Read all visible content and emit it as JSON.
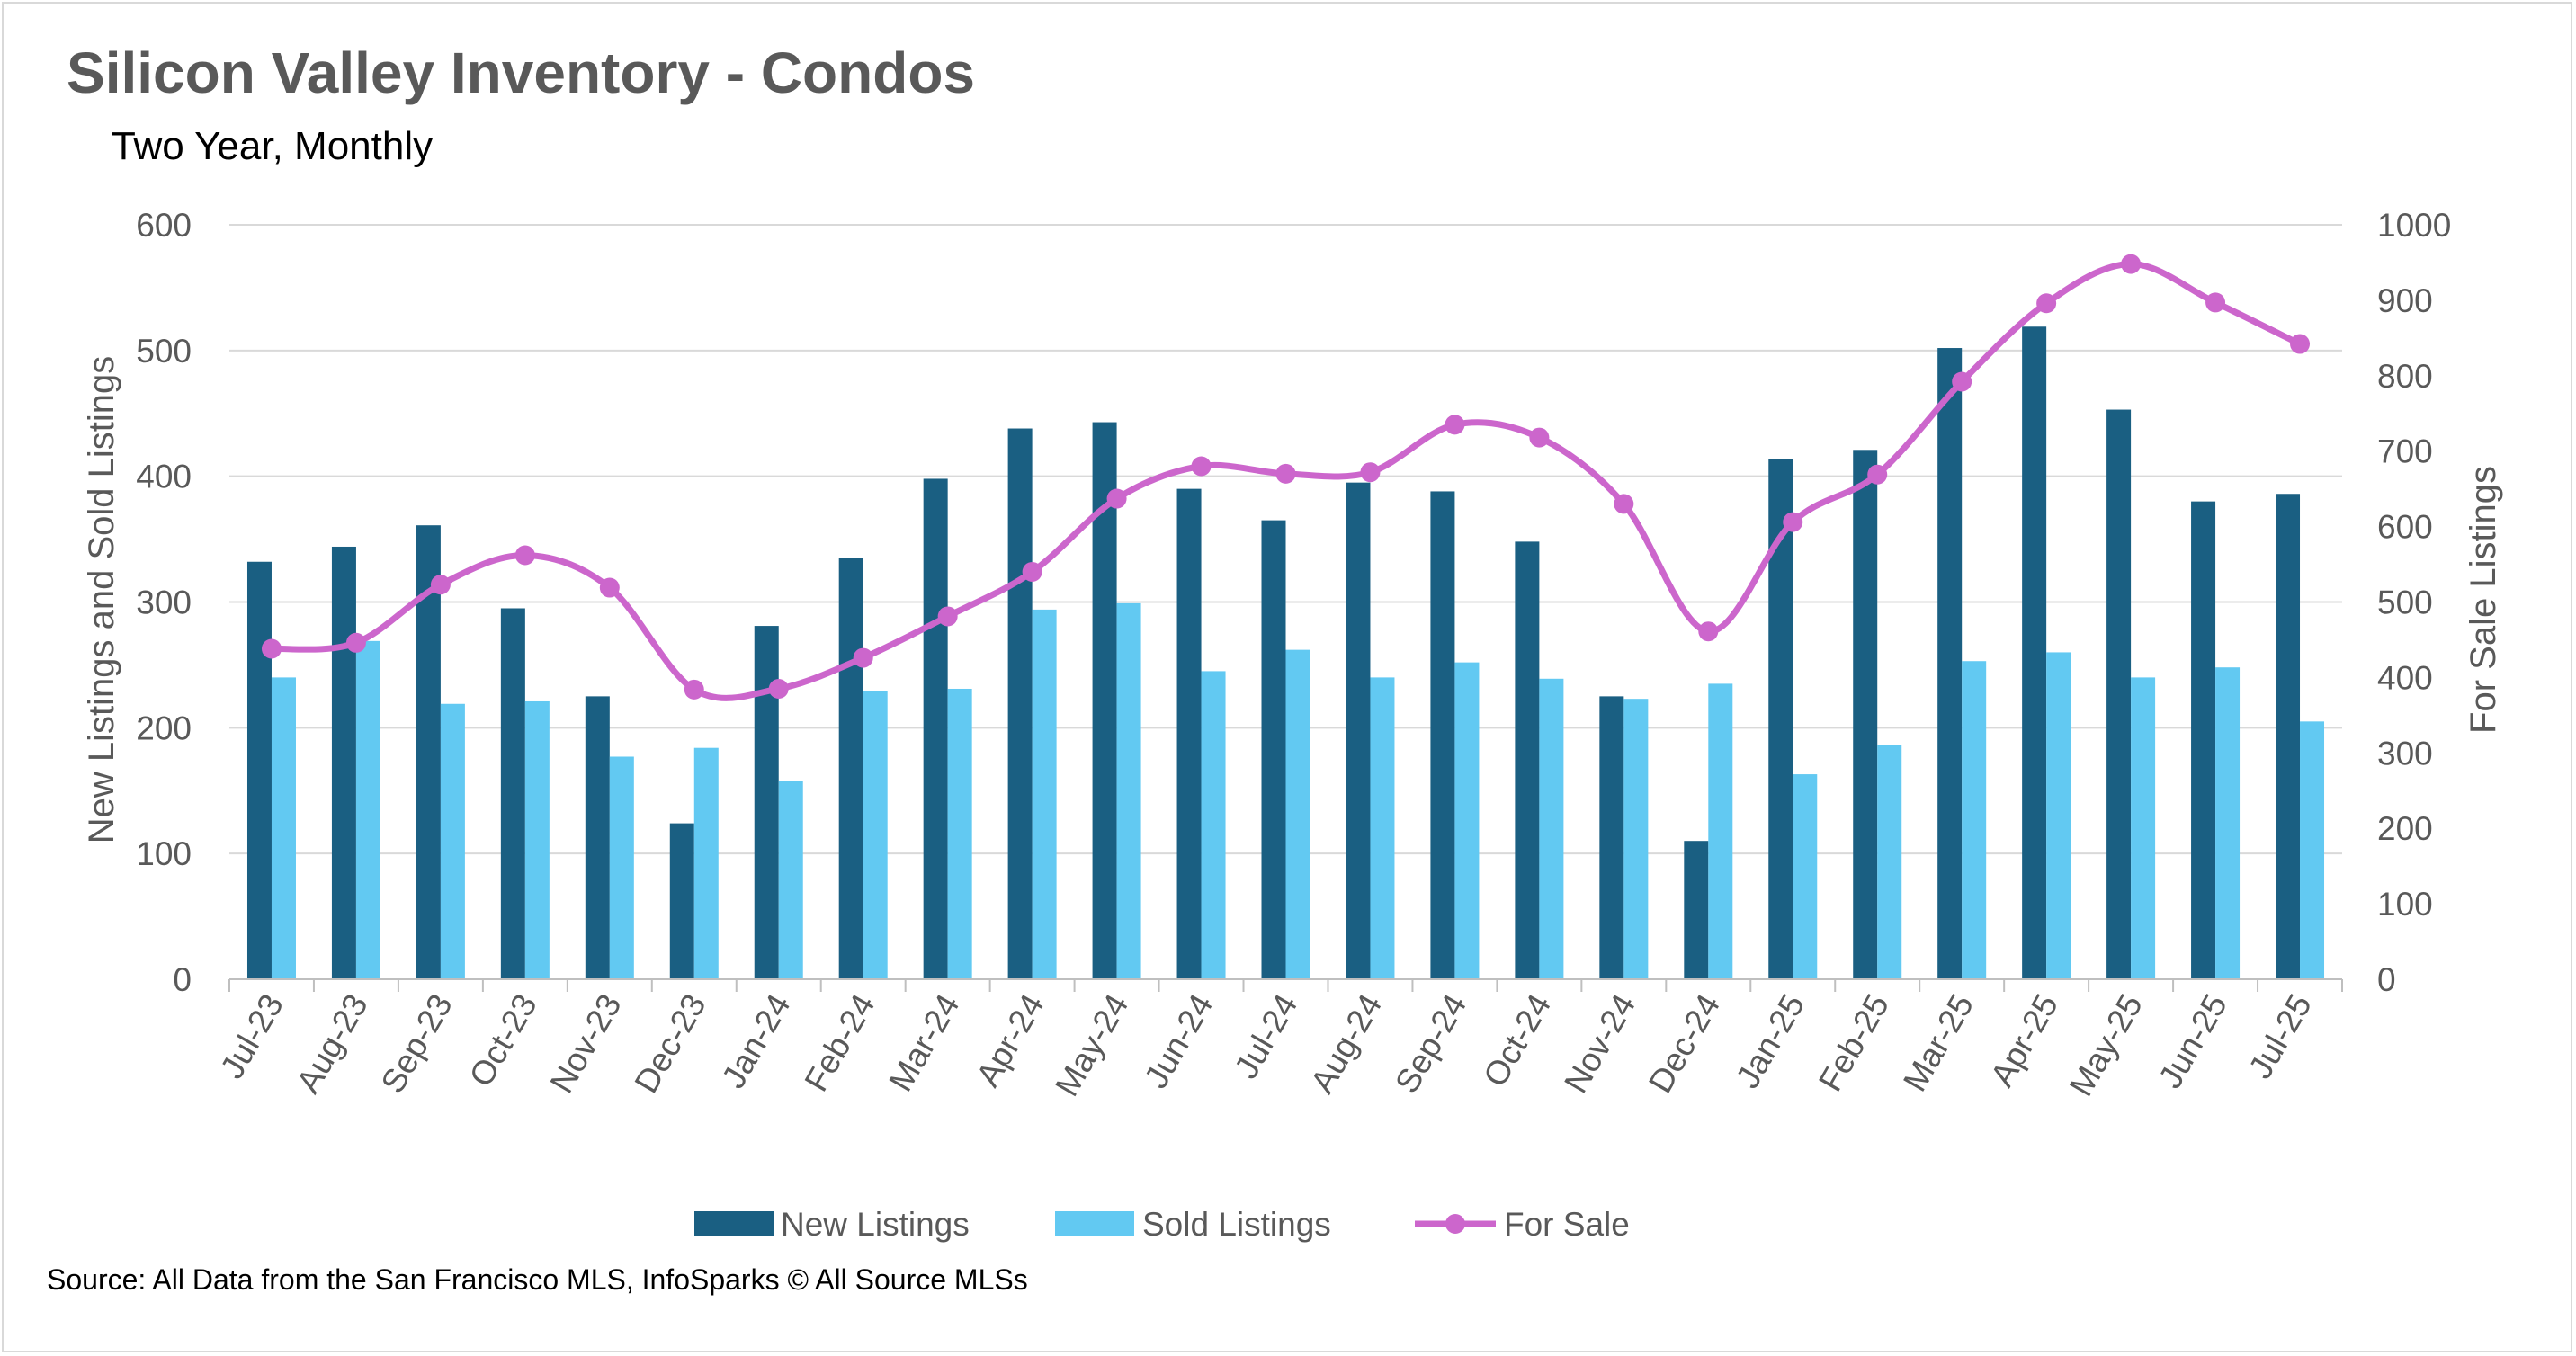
{
  "title": "Silicon Valley Inventory - Condos",
  "subtitle": "Two Year, Monthly",
  "source": "Source: All Data from the San Francisco MLS, InfoSparks © All Source MLSs",
  "chart_data": {
    "type": "bar",
    "categories": [
      "Jul-23",
      "Aug-23",
      "Sep-23",
      "Oct-23",
      "Nov-23",
      "Dec-23",
      "Jan-24",
      "Feb-24",
      "Mar-24",
      "Apr-24",
      "May-24",
      "Jun-24",
      "Jul-24",
      "Aug-24",
      "Sep-24",
      "Oct-24",
      "Nov-24",
      "Dec-24",
      "Jan-25",
      "Feb-25",
      "Mar-25",
      "Apr-25",
      "May-25",
      "Jun-25",
      "Jul-25"
    ],
    "series": [
      {
        "name": "New Listings",
        "type": "bar",
        "axis": "left",
        "color": "#1a5f82",
        "values": [
          332,
          344,
          361,
          295,
          225,
          124,
          281,
          335,
          398,
          438,
          443,
          390,
          365,
          395,
          388,
          348,
          225,
          110,
          414,
          421,
          502,
          519,
          453,
          380,
          386
        ]
      },
      {
        "name": "Sold Listings",
        "type": "bar",
        "axis": "left",
        "color": "#62c9f2",
        "values": [
          240,
          269,
          219,
          221,
          177,
          184,
          158,
          229,
          231,
          294,
          299,
          245,
          262,
          240,
          252,
          239,
          223,
          235,
          163,
          186,
          253,
          260,
          240,
          248,
          205
        ]
      },
      {
        "name": "For Sale",
        "type": "line",
        "axis": "right",
        "color": "#cc66cc",
        "values": [
          438,
          446,
          523,
          562,
          519,
          384,
          385,
          426,
          481,
          540,
          637,
          680,
          670,
          672,
          735,
          718,
          630,
          461,
          606,
          669,
          792,
          896,
          948,
          897,
          842
        ]
      }
    ],
    "ylabel": "New Listings and Sold Listings",
    "y2label": "For Sale Listings",
    "ylim": [
      0,
      600
    ],
    "y2lim": [
      0,
      1000
    ],
    "yticks": [
      "0",
      "100",
      "200",
      "300",
      "400",
      "500",
      "600"
    ],
    "y2ticks": [
      "0",
      "100",
      "200",
      "300",
      "400",
      "500",
      "600",
      "700",
      "800",
      "900",
      "1000"
    ],
    "grid": true,
    "legend_position": "bottom"
  }
}
